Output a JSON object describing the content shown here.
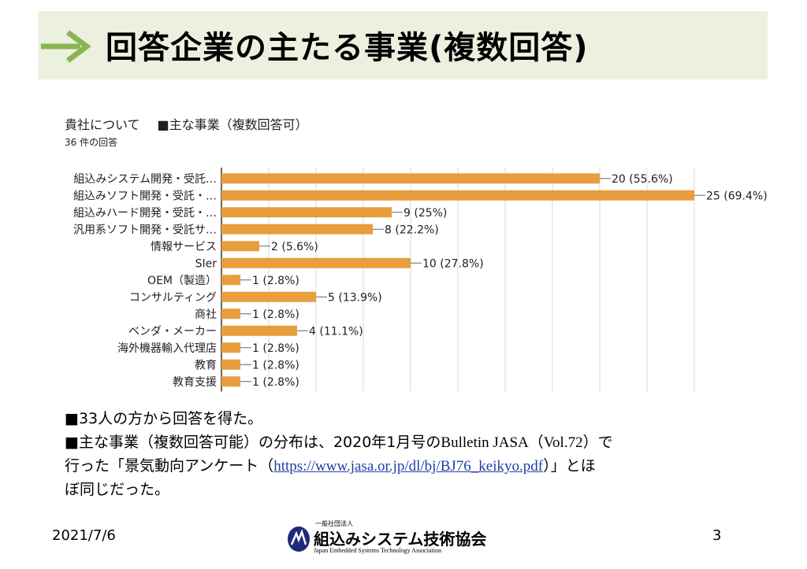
{
  "slide": {
    "title": "回答企業の主たる事業(複数回答)",
    "date": "2021/7/6",
    "page_number": "3"
  },
  "survey": {
    "section": "貴社について",
    "question": "■主な事業（複数回答可）",
    "response_count": "36 件の回答"
  },
  "notes": {
    "line1": "■33人の方から回答を得た。",
    "line2_a": "■主な事業（複数回答可能）の分布は、2020年1月号の",
    "line2_b": "Bulletin JASA（Vol.72）",
    "line2_c": "で",
    "line3_a": "行った「景気動向アンケート（",
    "link": "https://www.jasa.or.jp/dl/bj/BJ76_keikyo.pdf",
    "line3_b": "）」とほ",
    "line4": "ぼ同じだった。"
  },
  "logo": {
    "small_text": "一般社団法人",
    "name": "組込みシステム技術協会",
    "english": "Japan Embedded Systems Technology Association"
  },
  "colors": {
    "bar": "#e89d3e",
    "header_band": "#ebf1de",
    "arrow": "#8cb454",
    "grid": "#d9d9d9"
  },
  "chart_data": {
    "type": "bar",
    "orientation": "horizontal",
    "title": "■主な事業（複数回答可）",
    "categories": [
      "組込みシステム開発・受託…",
      "組込みソフト開発・受託・…",
      "組込みハード開発・受託・…",
      "汎用系ソフト開発・受託サ…",
      "情報サービス",
      "SIer",
      "OEM（製造）",
      "コンサルティング",
      "商社",
      "ベンダ・メーカー",
      "海外機器輸入代理店",
      "教育",
      "教育支援"
    ],
    "values": [
      20,
      25,
      9,
      8,
      2,
      10,
      1,
      5,
      1,
      4,
      1,
      1,
      1
    ],
    "labels": [
      "20 (55.6%)",
      "25 (69.4%)",
      "9 (25%)",
      "8 (22.2%)",
      "2 (5.6%)",
      "10 (27.8%)",
      "1 (2.8%)",
      "5 (13.9%)",
      "1 (2.8%)",
      "4 (11.1%)",
      "1 (2.8%)",
      "1 (2.8%)",
      "1 (2.8%)"
    ],
    "xlim": [
      0,
      25
    ],
    "grid": true
  }
}
